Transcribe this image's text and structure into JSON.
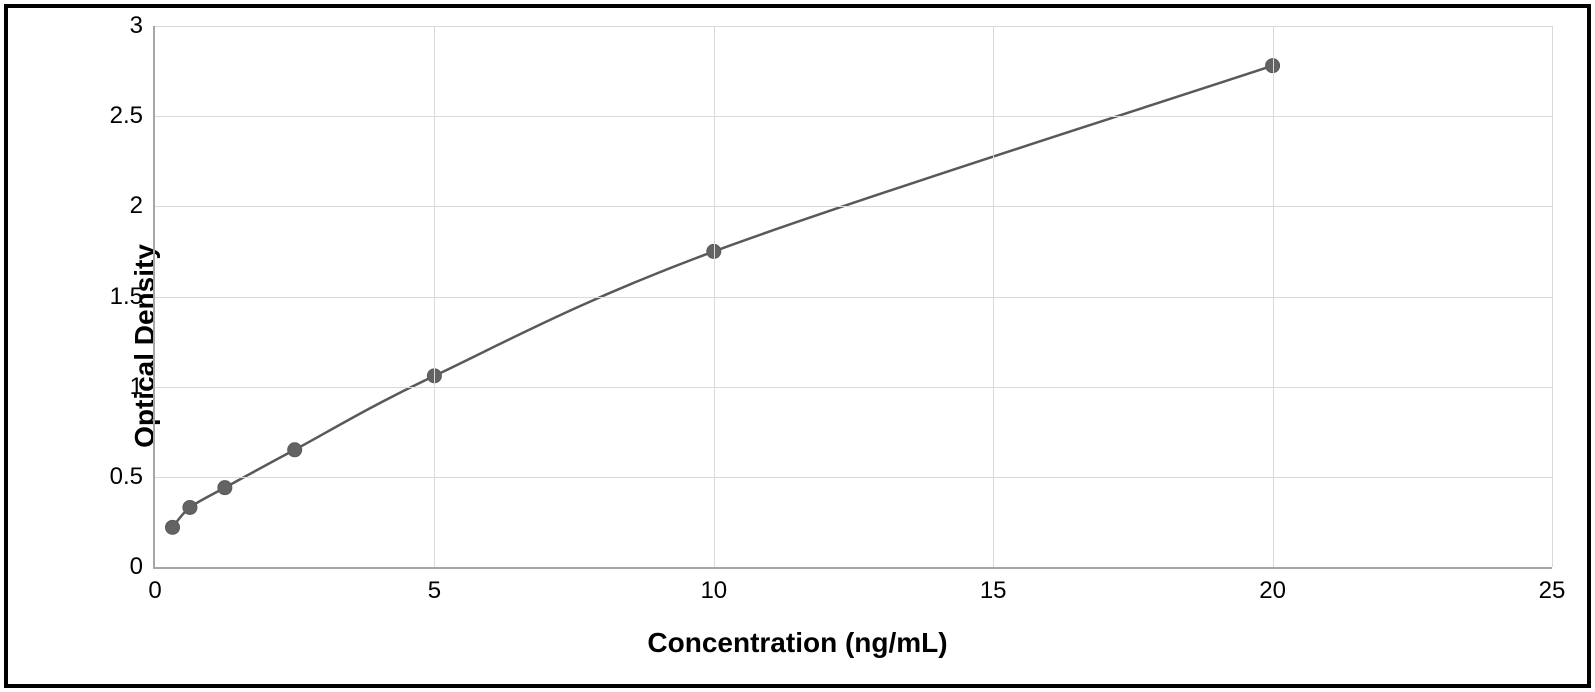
{
  "chart": {
    "type": "scatter-line",
    "x_label": "Concentration (ng/mL)",
    "y_label": "Optical Density",
    "xlim": [
      0,
      25
    ],
    "ylim": [
      0,
      3
    ],
    "x_ticks": [
      0,
      5,
      10,
      15,
      20,
      25
    ],
    "y_ticks": [
      0,
      0.5,
      1,
      1.5,
      2,
      2.5,
      3
    ],
    "x_tick_labels": [
      "0",
      "5",
      "10",
      "15",
      "20",
      "25"
    ],
    "y_tick_labels": [
      "0",
      "0.5",
      "1",
      "1.5",
      "2",
      "2.5",
      "3"
    ],
    "series": {
      "x": [
        0.313,
        0.625,
        1.25,
        2.5,
        5,
        10,
        20
      ],
      "y": [
        0.22,
        0.33,
        0.44,
        0.65,
        1.06,
        1.75,
        2.78
      ]
    },
    "marker_color": "#636363",
    "marker_stroke": "#595959",
    "marker_radius": 7,
    "line_color": "#595959",
    "line_width": 2.5,
    "grid_color": "#d9d9d9",
    "axis_color": "#a6a6a6",
    "background_color": "#ffffff",
    "tick_fontsize": 24,
    "label_fontsize": 28,
    "label_fontweight": "bold",
    "frame_border_color": "#000000",
    "frame_border_width": 4
  }
}
